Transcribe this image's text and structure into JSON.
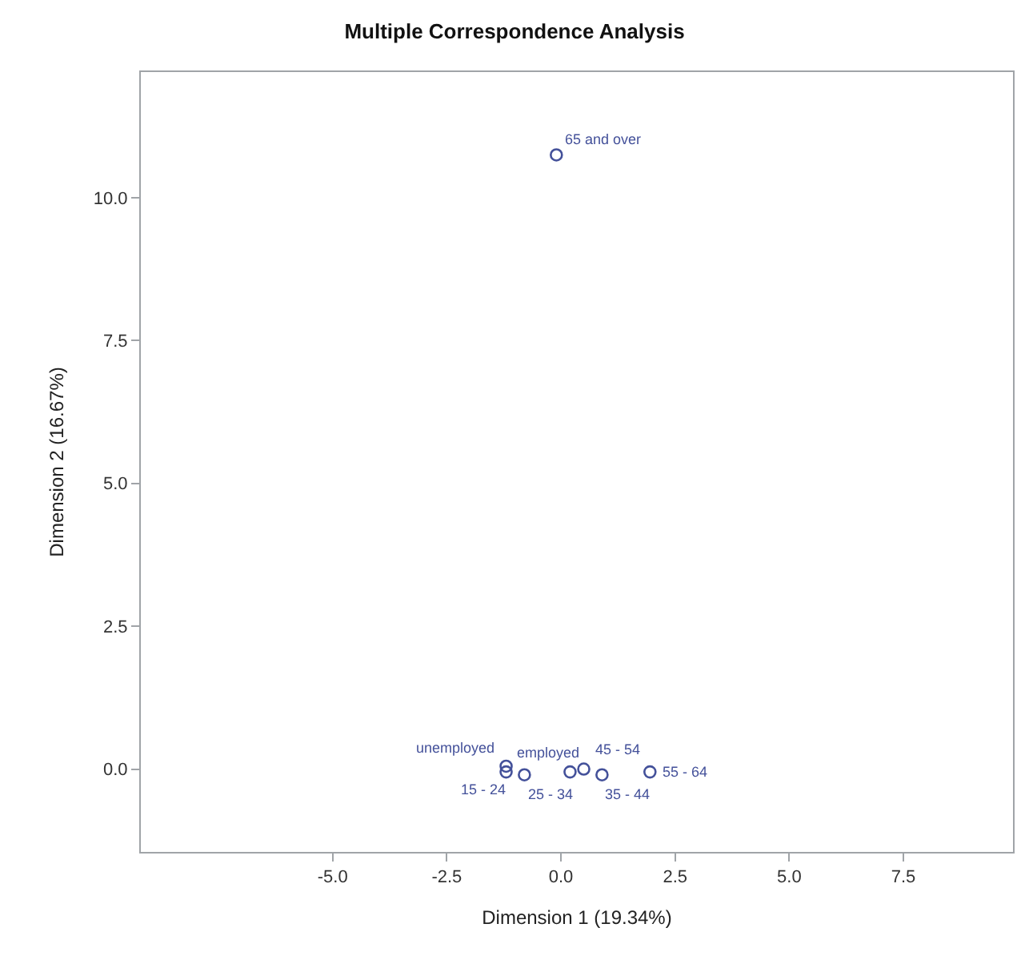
{
  "chart_data": {
    "type": "scatter",
    "title": "Multiple Correspondence Analysis",
    "xlabel": "Dimension 1 (19.34%)",
    "ylabel": "Dimension 2 (16.67%)",
    "x": [
      -1.2,
      -1.2,
      -0.8,
      0.2,
      0.9,
      0.5,
      1.95,
      -0.1
    ],
    "series": [
      {
        "color": "#44519a",
        "values": [
          0.05,
          -0.05,
          -0.1,
          -0.05,
          -0.1,
          0.0,
          -0.05,
          10.75
        ]
      }
    ],
    "annotations": [
      {
        "text": "unemployed",
        "x": -1.2,
        "y": 0.05
      },
      {
        "text": "15 - 24",
        "x": -1.2,
        "y": -0.05
      },
      {
        "text": "25 - 34",
        "x": -0.8,
        "y": -0.1
      },
      {
        "text": "employed",
        "x": 0.2,
        "y": -0.05
      },
      {
        "text": "35 - 44",
        "x": 0.9,
        "y": -0.1
      },
      {
        "text": "45 - 54",
        "x": 0.5,
        "y": 0.0
      },
      {
        "text": "55 - 64",
        "x": 1.95,
        "y": -0.05
      },
      {
        "text": "65 and over",
        "x": -0.1,
        "y": 10.75
      }
    ],
    "xlim": [
      -9.2,
      9.9
    ],
    "ylim": [
      -1.45,
      12.2
    ],
    "xticks": [
      {
        "value": -5,
        "label": "-5.0"
      },
      -2.5,
      {
        "value": 0,
        "label": "0.0"
      },
      2.5,
      {
        "value": 5,
        "label": "5.0"
      },
      7.5
    ],
    "yticks": [
      {
        "value": 0,
        "label": "0.0"
      },
      2.5,
      {
        "value": 5,
        "label": "5.0"
      },
      7.5,
      {
        "value": 10,
        "label": "10.0"
      }
    ],
    "marker": "circle"
  }
}
